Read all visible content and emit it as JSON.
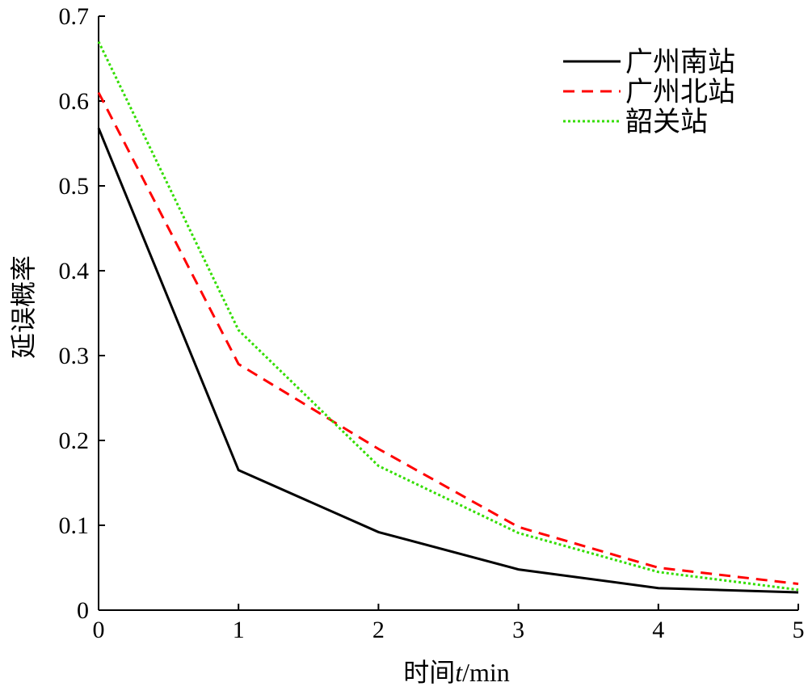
{
  "chart_data": {
    "type": "line",
    "title": "",
    "xlabel_prefix": "时间",
    "xlabel_var": "t",
    "xlabel_unit": "/min",
    "ylabel": "延误概率",
    "xlim": [
      0,
      5
    ],
    "ylim": [
      0,
      0.7
    ],
    "xticks": [
      0,
      1,
      2,
      3,
      4,
      5
    ],
    "yticks": [
      0,
      0.1,
      0.2,
      0.3,
      0.4,
      0.5,
      0.6,
      0.7
    ],
    "xtick_labels": [
      "0",
      "1",
      "2",
      "3",
      "4",
      "5"
    ],
    "ytick_labels": [
      "0",
      "0.1",
      "0.2",
      "0.3",
      "0.4",
      "0.5",
      "0.6",
      "0.7"
    ],
    "grid": false,
    "legend_position": "top-right",
    "x": [
      0,
      1,
      2,
      3,
      4,
      5
    ],
    "series": [
      {
        "name": "广州南站",
        "values": [
          0.568,
          0.165,
          0.092,
          0.048,
          0.026,
          0.021
        ],
        "color": "#000000",
        "style": "solid"
      },
      {
        "name": "广州北站",
        "values": [
          0.61,
          0.29,
          0.19,
          0.098,
          0.05,
          0.031
        ],
        "color": "#ff0000",
        "style": "dashed"
      },
      {
        "name": "韶关站",
        "values": [
          0.67,
          0.33,
          0.17,
          0.091,
          0.045,
          0.024
        ],
        "color": "#33dd00",
        "style": "dotted"
      }
    ]
  }
}
